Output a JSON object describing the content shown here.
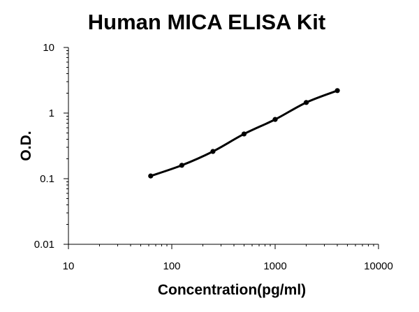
{
  "chart_data": {
    "type": "scatter",
    "title": "Human MICA ELISA Kit",
    "xlabel": "Concentration(pg/ml)",
    "ylabel": "O.D.",
    "x_scale": "log",
    "y_scale": "log",
    "xlim": [
      10,
      10000
    ],
    "ylim": [
      0.01,
      10
    ],
    "x_ticks": [
      10,
      100,
      1000,
      10000
    ],
    "x_tick_labels": [
      "10",
      "100",
      "1000",
      "10000"
    ],
    "y_ticks": [
      0.01,
      0.1,
      1,
      10
    ],
    "y_tick_labels": [
      "0.01",
      "0.1",
      "1",
      "10"
    ],
    "grid": false,
    "legend": "none",
    "series": [
      {
        "x": [
          62.5,
          125,
          250,
          500,
          1000,
          2000,
          4000
        ],
        "y": [
          0.11,
          0.16,
          0.26,
          0.48,
          0.8,
          1.45,
          2.2
        ],
        "color": "#000000",
        "smooth": true,
        "markers": true
      }
    ]
  }
}
